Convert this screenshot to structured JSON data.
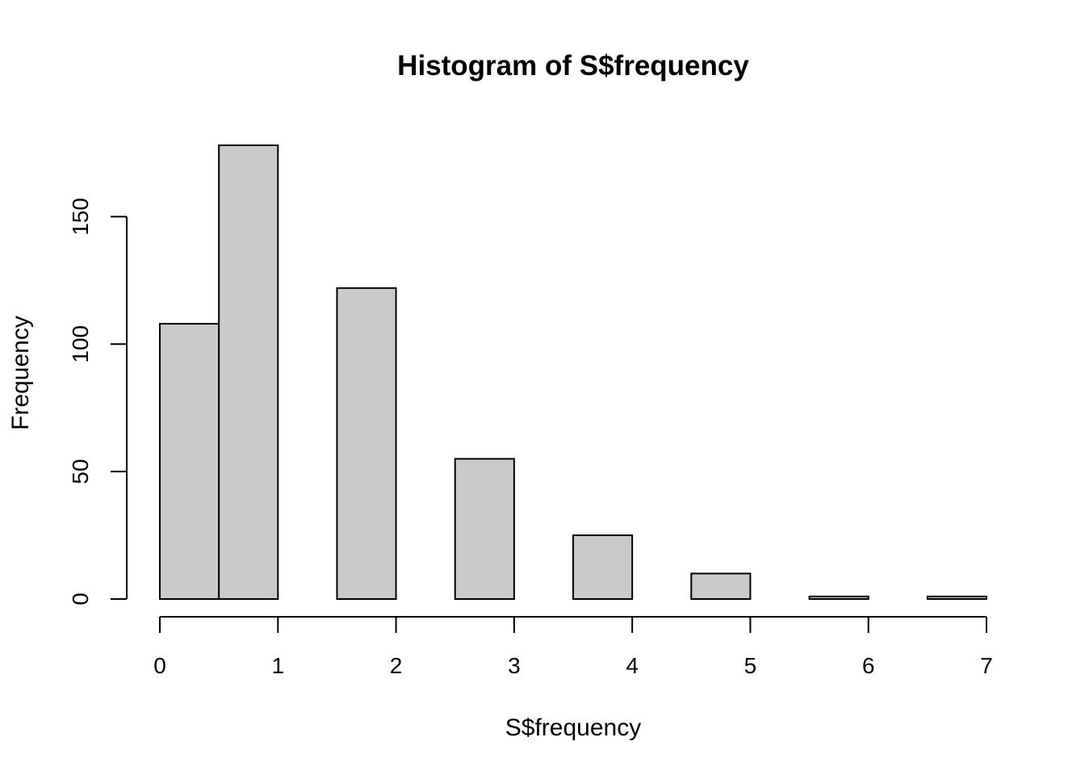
{
  "chart_data": {
    "type": "bar",
    "title": "Histogram of S$frequency",
    "xlabel": "S$frequency",
    "ylabel": "Frequency",
    "bins": [
      {
        "x0": 0.0,
        "x1": 0.5,
        "count": 108
      },
      {
        "x0": 0.5,
        "x1": 1.0,
        "count": 178
      },
      {
        "x0": 1.0,
        "x1": 1.5,
        "count": 0
      },
      {
        "x0": 1.5,
        "x1": 2.0,
        "count": 122
      },
      {
        "x0": 2.0,
        "x1": 2.5,
        "count": 0
      },
      {
        "x0": 2.5,
        "x1": 3.0,
        "count": 55
      },
      {
        "x0": 3.0,
        "x1": 3.5,
        "count": 0
      },
      {
        "x0": 3.5,
        "x1": 4.0,
        "count": 25
      },
      {
        "x0": 4.0,
        "x1": 4.5,
        "count": 0
      },
      {
        "x0": 4.5,
        "x1": 5.0,
        "count": 10
      },
      {
        "x0": 5.0,
        "x1": 5.5,
        "count": 0
      },
      {
        "x0": 5.5,
        "x1": 6.0,
        "count": 1
      },
      {
        "x0": 6.0,
        "x1": 6.5,
        "count": 0
      },
      {
        "x0": 6.5,
        "x1": 7.0,
        "count": 1
      }
    ],
    "xticks": [
      0,
      1,
      2,
      3,
      4,
      5,
      6,
      7
    ],
    "yticks": [
      0,
      50,
      100,
      150
    ],
    "xlim": [
      0,
      7
    ],
    "ylim": [
      0,
      178
    ],
    "grid": false,
    "bar_color": "#cacaca"
  }
}
